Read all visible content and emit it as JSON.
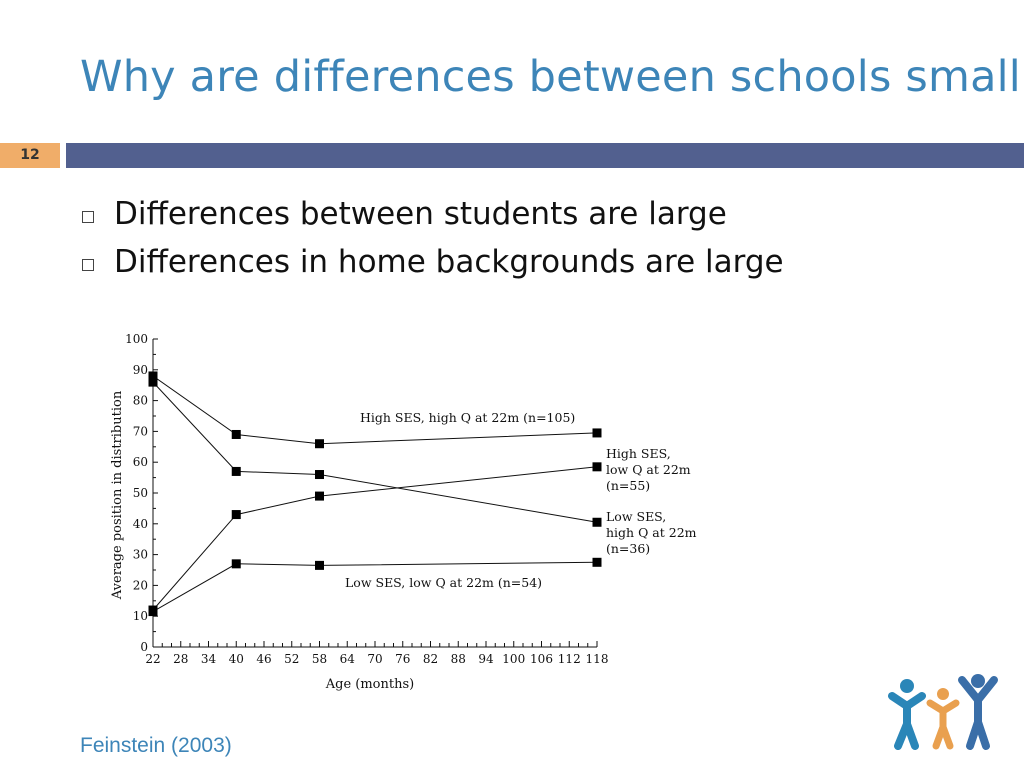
{
  "slide": {
    "title": "Why are differences between schools small?",
    "page_number": "12",
    "bullets": [
      "Differences between students are large",
      "Differences in home backgrounds are large"
    ],
    "source": "Feinstein (2003)",
    "colors": {
      "title": "#3d85b8",
      "band": "#52608f",
      "page_number_bg": "#f0ad69"
    },
    "logo_icon": "people-family-icon"
  },
  "chart_data": {
    "type": "line",
    "xlabel": "Age (months)",
    "ylabel": "Average position in distribution",
    "xlim": [
      22,
      118
    ],
    "ylim": [
      0,
      100
    ],
    "x_ticks": [
      22,
      28,
      34,
      40,
      46,
      52,
      58,
      64,
      70,
      76,
      82,
      88,
      94,
      100,
      106,
      112,
      118
    ],
    "y_ticks": [
      0,
      10,
      20,
      30,
      40,
      50,
      60,
      70,
      80,
      90,
      100
    ],
    "x": [
      22,
      40,
      58,
      118
    ],
    "series": [
      {
        "name": "High SES, high Q at 22m (n=105)",
        "values": [
          88,
          69,
          66,
          69.5
        ]
      },
      {
        "name": "High SES, low Q at 22m (n=55)",
        "values": [
          12,
          43,
          49,
          58.5
        ]
      },
      {
        "name": "Low SES, high Q at 22m (n=36)",
        "values": [
          86,
          57,
          56,
          40.5
        ]
      },
      {
        "name": "Low SES, low Q at 22m (n=54)",
        "values": [
          11.5,
          27,
          26.5,
          27.5
        ]
      }
    ],
    "annotations": [
      "High SES, high Q at 22m (n=105)",
      "High SES,",
      "low Q at 22m",
      "(n=55)",
      "Low SES,",
      "high Q at 22m",
      "(n=36)",
      "Low SES, low Q at 22m (n=54)"
    ],
    "grid": false,
    "legend": "none"
  }
}
